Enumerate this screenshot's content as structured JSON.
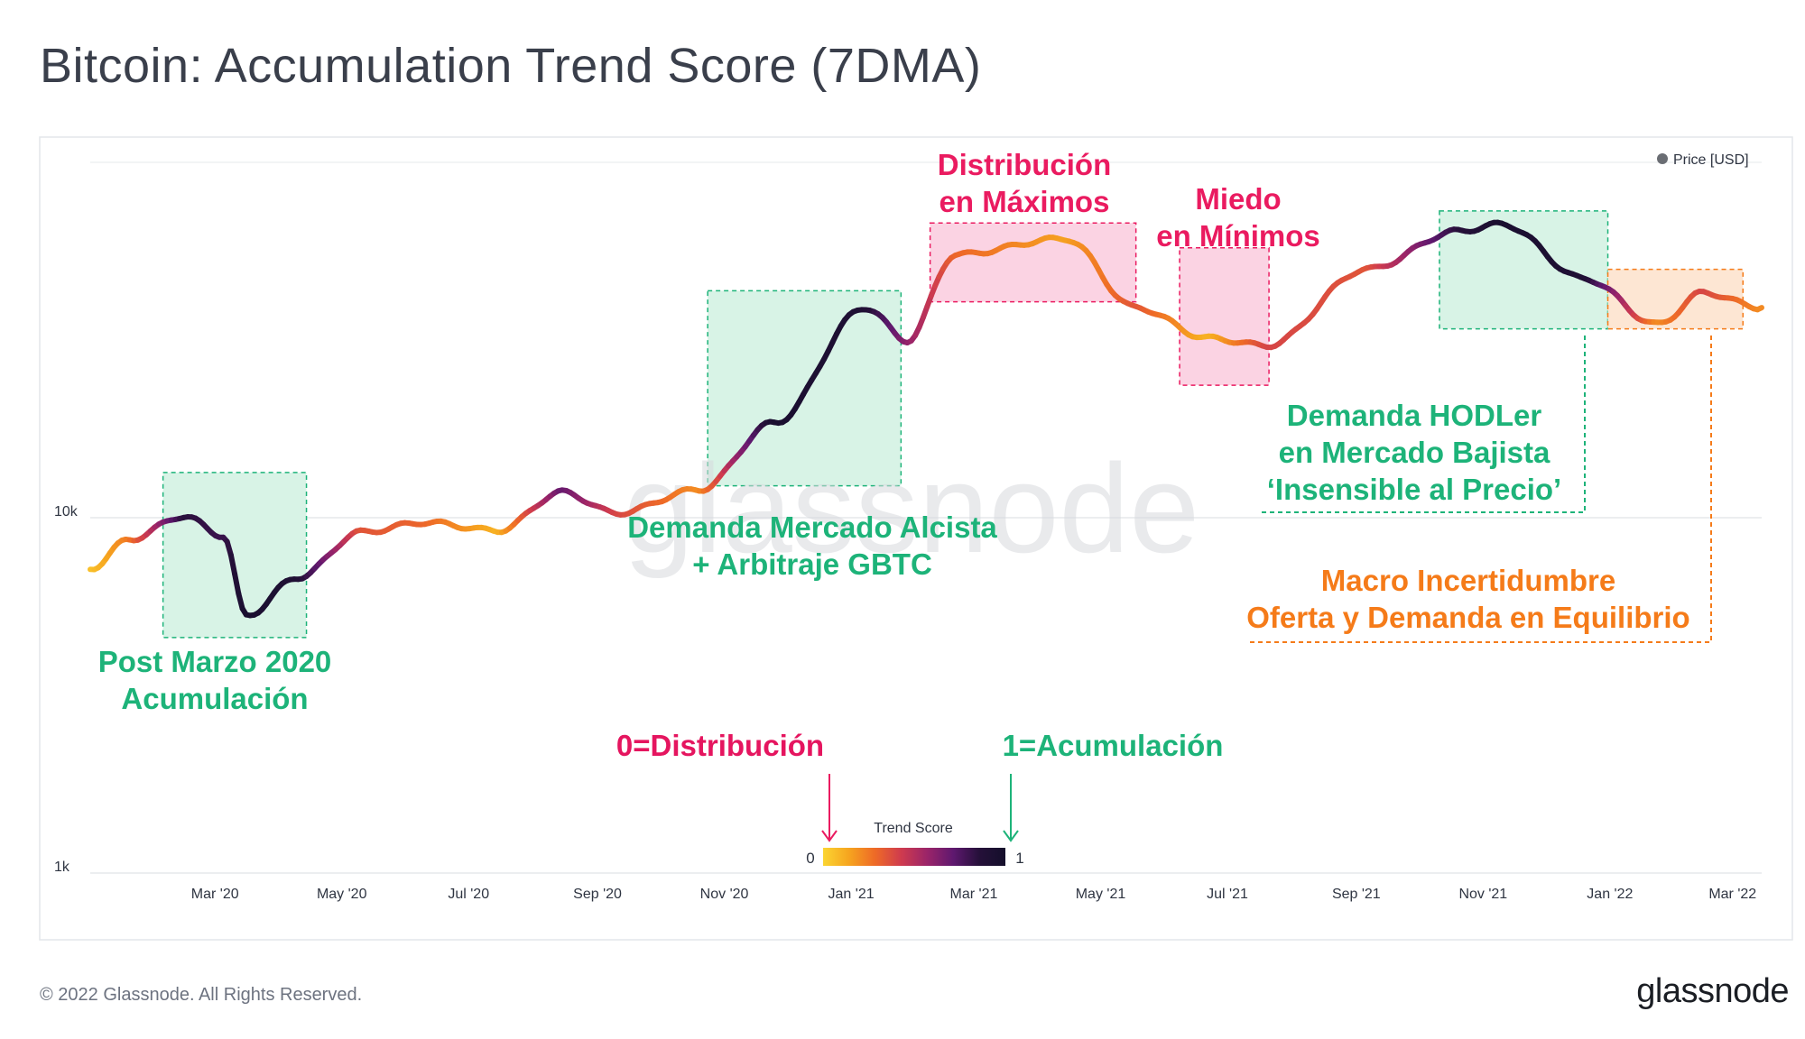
{
  "page": {
    "title": "Bitcoin: Accumulation Trend Score (7DMA)",
    "footer": "© 2022 Glassnode. All Rights Reserved.",
    "brand": "glassnode",
    "watermark": "glassnode"
  },
  "colors": {
    "accent_green": "#1db379",
    "accent_pink": "#ea1b60",
    "accent_orange": "#f57b19",
    "box_green": "#d8f3e6",
    "box_pink": "#fbd3e3",
    "box_orange": "#fde6d3"
  },
  "chart_data": {
    "type": "line",
    "title": "Bitcoin: Accumulation Trend Score (7DMA)",
    "y_scale": "log",
    "ylim": [
      1000,
      100000
    ],
    "y_ticks": [
      {
        "value": 1000,
        "label": "1k"
      },
      {
        "value": 10000,
        "label": "10k"
      }
    ],
    "x_start": "2020-01-01",
    "x_end": "2022-03-15",
    "x_ticks": [
      {
        "label": "Mar '20",
        "month": 2
      },
      {
        "label": "May '20",
        "month": 4
      },
      {
        "label": "Jul '20",
        "month": 6
      },
      {
        "label": "Sep '20",
        "month": 8
      },
      {
        "label": "Nov '20",
        "month": 10
      },
      {
        "label": "Jan '21",
        "month": 12
      },
      {
        "label": "Mar '21",
        "month": 14
      },
      {
        "label": "May '21",
        "month": 16
      },
      {
        "label": "Jul '21",
        "month": 18
      },
      {
        "label": "Sep '21",
        "month": 20
      },
      {
        "label": "Nov '21",
        "month": 22
      },
      {
        "label": "Jan '22",
        "month": 24
      },
      {
        "label": "Mar '22",
        "month": 26
      }
    ],
    "legend": {
      "label": "Price [USD]",
      "position": "top-right"
    },
    "color_scale": {
      "label": "Trend Score",
      "min_label": "0",
      "max_label": "1",
      "stops": [
        "#fbd532",
        "#f6a41f",
        "#ee6a27",
        "#cf3b4e",
        "#9a2469",
        "#5f186f",
        "#251039",
        "#140f2b"
      ]
    },
    "series": [
      {
        "name": "Price [USD]",
        "points": [
          {
            "date": "2020-01-01",
            "price": 7200,
            "score": 0.05
          },
          {
            "date": "2020-01-20",
            "price": 8700,
            "score": 0.25
          },
          {
            "date": "2020-02-15",
            "price": 10100,
            "score": 0.85
          },
          {
            "date": "2020-03-05",
            "price": 8900,
            "score": 0.8
          },
          {
            "date": "2020-03-16",
            "price": 5300,
            "score": 0.95
          },
          {
            "date": "2020-04-10",
            "price": 6800,
            "score": 0.9
          },
          {
            "date": "2020-05-10",
            "price": 9100,
            "score": 0.35
          },
          {
            "date": "2020-06-10",
            "price": 9700,
            "score": 0.3
          },
          {
            "date": "2020-07-15",
            "price": 9200,
            "score": 0.1
          },
          {
            "date": "2020-08-15",
            "price": 11800,
            "score": 0.7
          },
          {
            "date": "2020-09-10",
            "price": 10300,
            "score": 0.4
          },
          {
            "date": "2020-10-20",
            "price": 12000,
            "score": 0.2
          },
          {
            "date": "2020-11-25",
            "price": 18500,
            "score": 0.95
          },
          {
            "date": "2021-01-08",
            "price": 39000,
            "score": 0.9
          },
          {
            "date": "2021-01-28",
            "price": 31500,
            "score": 0.6
          },
          {
            "date": "2021-02-20",
            "price": 55000,
            "score": 0.3
          },
          {
            "date": "2021-04-14",
            "price": 61000,
            "score": 0.15
          },
          {
            "date": "2021-05-18",
            "price": 39000,
            "score": 0.35
          },
          {
            "date": "2021-06-22",
            "price": 32000,
            "score": 0.1
          },
          {
            "date": "2021-07-20",
            "price": 30500,
            "score": 0.4
          },
          {
            "date": "2021-09-06",
            "price": 50000,
            "score": 0.35
          },
          {
            "date": "2021-10-20",
            "price": 64000,
            "score": 0.85
          },
          {
            "date": "2021-11-10",
            "price": 67000,
            "score": 0.95
          },
          {
            "date": "2021-12-20",
            "price": 47000,
            "score": 0.9
          },
          {
            "date": "2022-01-24",
            "price": 35000,
            "score": 0.2
          },
          {
            "date": "2022-02-15",
            "price": 43000,
            "score": 0.4
          },
          {
            "date": "2022-03-15",
            "price": 39000,
            "score": 0.2
          }
        ]
      }
    ],
    "annotations": [
      {
        "id": "post-marzo",
        "lines": [
          "Post Marzo 2020",
          "Acumulación"
        ],
        "color": "green"
      },
      {
        "id": "alcista",
        "lines": [
          "Demanda Mercado Alcista",
          "+ Arbitraje GBTC"
        ],
        "color": "green"
      },
      {
        "id": "distribucion",
        "lines": [
          "Distribución",
          "en Máximos"
        ],
        "color": "pink"
      },
      {
        "id": "miedo",
        "lines": [
          "Miedo",
          "en Mínimos"
        ],
        "color": "pink"
      },
      {
        "id": "hodler",
        "lines": [
          "Demanda HODLer",
          "en Mercado Bajista",
          "‘Insensible al Precio’"
        ],
        "color": "green"
      },
      {
        "id": "macro",
        "lines": [
          "Macro Incertidumbre",
          "Oferta y Demanda en Equilibrio"
        ],
        "color": "orange"
      },
      {
        "id": "zero",
        "lines": [
          "0=Distribución"
        ],
        "color": "red"
      },
      {
        "id": "one",
        "lines": [
          "1=Acumulación"
        ],
        "color": "green"
      }
    ]
  }
}
